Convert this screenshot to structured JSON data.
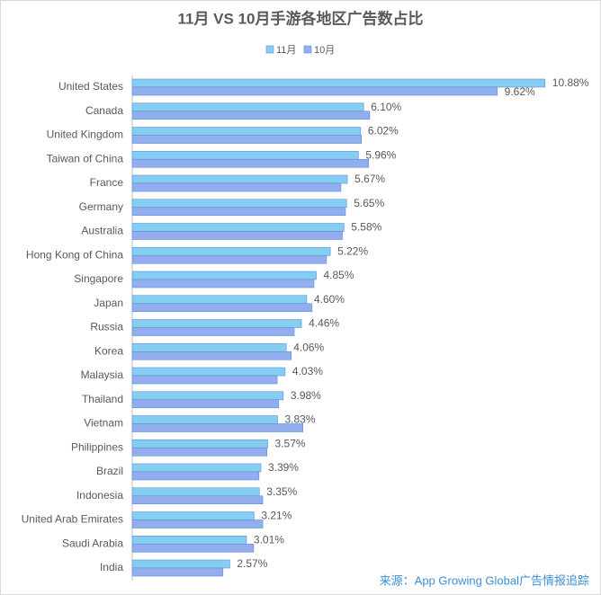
{
  "chart_data": {
    "type": "hbar",
    "title": "11月 VS 10月手游各地区广告数占比",
    "categories": [
      "United States",
      "Canada",
      "United Kingdom",
      "Taiwan of China",
      "France",
      "Germany",
      "Australia",
      "Hong Kong of China",
      "Singapore",
      "Japan",
      "Russia",
      "Korea",
      "Malaysia",
      "Thailand",
      "Vietnam",
      "Philippines",
      "Brazil",
      "Indonesia",
      "United Arab Emirates",
      "Saudi Arabia",
      "India"
    ],
    "series": [
      {
        "name": "11月",
        "color": "#86cdf2",
        "values": [
          10.88,
          6.1,
          6.02,
          5.96,
          5.67,
          5.65,
          5.58,
          5.22,
          4.85,
          4.6,
          4.46,
          4.06,
          4.03,
          3.98,
          3.83,
          3.57,
          3.39,
          3.35,
          3.21,
          3.01,
          2.57
        ],
        "value_labels": [
          "10.88%",
          "6.10%",
          "6.02%",
          "5.96%",
          "5.67%",
          "5.65%",
          "5.58%",
          "5.22%",
          "4.85%",
          "4.60%",
          "4.46%",
          "4.06%",
          "4.03%",
          "3.98%",
          "3.83%",
          "3.57%",
          "3.39%",
          "3.35%",
          "3.21%",
          "3.01%",
          "2.57%"
        ]
      },
      {
        "name": "10月",
        "color": "#93aeee",
        "values": [
          9.62,
          6.26,
          6.04,
          6.23,
          5.5,
          5.62,
          5.54,
          5.12,
          4.79,
          4.74,
          4.27,
          4.19,
          3.82,
          3.86,
          4.5,
          3.55,
          3.34,
          3.44,
          3.44,
          3.2,
          2.39
        ],
        "value_labels": [
          "9.62%",
          null,
          null,
          null,
          null,
          null,
          null,
          null,
          null,
          null,
          null,
          null,
          null,
          null,
          null,
          null,
          null,
          null,
          null,
          null,
          null
        ]
      }
    ],
    "xlim": [
      0,
      12
    ],
    "legend": "top",
    "source": "来源：App Growing Global广告情报追踪"
  }
}
